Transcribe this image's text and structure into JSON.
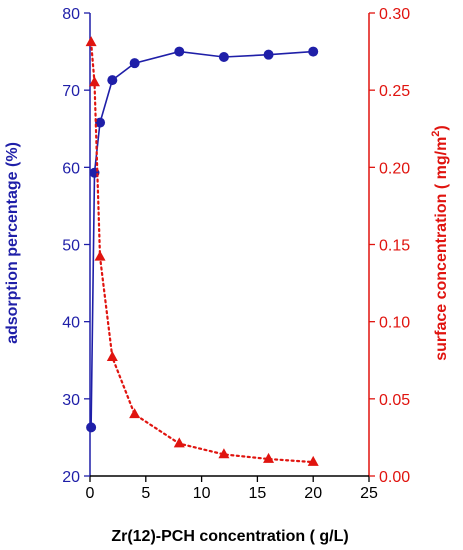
{
  "chart_data": {
    "type": "line",
    "xlabel": "Zr(12)-PCH concentration ( g/L)",
    "ylabel_left": "adsorption percentage (%)",
    "ylabel_right_main": "surface concentration ( mg/m",
    "ylabel_right_sup": "2",
    "ylabel_right_close": ")",
    "xlim": [
      0,
      25
    ],
    "xticks": [
      "0",
      "5",
      "10",
      "15",
      "20",
      "25"
    ],
    "ylim_left": [
      20,
      80
    ],
    "yticks_left": [
      "20",
      "30",
      "40",
      "50",
      "60",
      "70",
      "80"
    ],
    "ylim_right": [
      0.0,
      0.3
    ],
    "yticks_right": [
      "0.00",
      "0.05",
      "0.10",
      "0.15",
      "0.20",
      "0.25",
      "0.30"
    ],
    "grid": false,
    "series": [
      {
        "axis": "left",
        "color": "#1f1fa8",
        "marker": "circle",
        "line": "solid",
        "x": [
          0.1,
          0.4,
          0.9,
          2,
          4,
          8,
          12,
          16,
          20
        ],
        "values": [
          26.3,
          59.3,
          65.8,
          71.3,
          73.5,
          75.0,
          74.3,
          74.6,
          75.0
        ]
      },
      {
        "axis": "right",
        "color": "#e0140f",
        "marker": "triangle",
        "line": "dotted",
        "x": [
          0.1,
          0.4,
          0.9,
          2,
          4,
          8,
          12,
          16,
          20
        ],
        "values": [
          0.281,
          0.255,
          0.142,
          0.077,
          0.04,
          0.021,
          0.014,
          0.011,
          0.009
        ]
      }
    ]
  }
}
